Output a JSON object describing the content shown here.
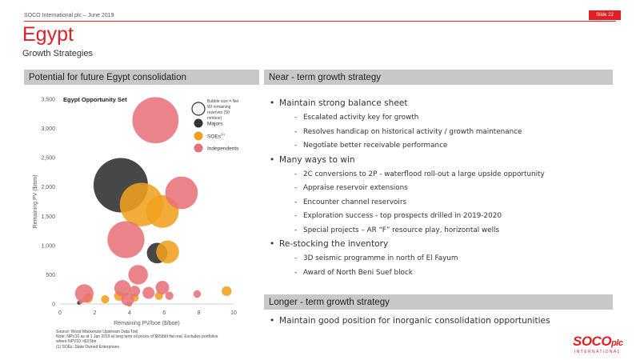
{
  "header": {
    "company": "SOCO International plc – June 2019",
    "slide": "Slide 22"
  },
  "title": "Egypt",
  "subtitle": "Growth Strategies",
  "left_panel": {
    "heading": "Potential for future Egypt consolidation",
    "footnotes": [
      "Source: Wood Mackenzie Upstream Data Tool",
      "Note: NPV10 as at 1 Jan 2019 at long term oil prices of $65/bbl flat real. Excludes portfolios",
      "where NPV10 >$3.5bn",
      "(1) SOEs: State Owned Enterprises"
    ]
  },
  "right_panel": {
    "near_heading": "Near - term growth strategy",
    "near_items": [
      {
        "text": "Maintain strong balance sheet",
        "subs": [
          "Escalated activity key for growth",
          "Resolves handicap on historical activity / growth maintenance",
          "Negotiate better receivable performance"
        ]
      },
      {
        "text": "Many ways to win",
        "subs": [
          "2C conversions to 2P - waterflood roll-out a large upside opportunity",
          "Appraise reservoir extensions",
          "Encounter channel reservoirs",
          "Exploration success - top prospects drilled in 2019-2020",
          "Special projects – AR “F” resource play, horizontal wells"
        ]
      },
      {
        "text": "Re-stocking the inventory",
        "subs": [
          "3D seismic programme in north of El Fayum",
          "Award of North Beni Suef block"
        ]
      }
    ],
    "longer_heading": "Longer - term growth strategy",
    "longer_items": [
      "Maintain good position for inorganic consolidation opportunities"
    ]
  },
  "logo": {
    "text": "SOCO",
    "suffix": "plc",
    "sub": "INTERNATIONAL"
  },
  "colors": {
    "accent": "#e31e24",
    "majors": "#333333",
    "soes": "#f0a01e",
    "independents": "#e8727a",
    "bar": "#c8c8c8"
  },
  "chart_data": {
    "type": "scatter",
    "title": "Egypt Opportunity Set",
    "xlabel": "Remaining PV/boe ($/boe)",
    "ylabel": "Remaining PV ($mm)",
    "xlim": [
      0,
      10
    ],
    "ylim": [
      0,
      3500
    ],
    "xticks": [
      "0",
      "2",
      "4",
      "6",
      "8",
      "10"
    ],
    "yticks": [
      "0",
      "500",
      "1,000",
      "1,500",
      "2,000",
      "2,500",
      "3,000",
      "3,500"
    ],
    "grid": false,
    "legend_position": "top-right",
    "legend": {
      "size_note": "Bubble size = Net WI remaining reserves (50 mmboe)",
      "entries": [
        "Majors",
        "SOEs",
        "Independents"
      ],
      "soes_sup": "(1)"
    },
    "series": [
      {
        "name": "Majors",
        "points": [
          [
            3.5,
            2030,
            1.0
          ],
          [
            5.6,
            870,
            0.38
          ],
          [
            1.1,
            20,
            0.06
          ]
        ]
      },
      {
        "name": "SOEs",
        "points": [
          [
            4.7,
            1700,
            0.8
          ],
          [
            5.9,
            1580,
            0.6
          ],
          [
            6.2,
            890,
            0.42
          ],
          [
            3.4,
            140,
            0.18
          ],
          [
            2.6,
            80,
            0.15
          ],
          [
            1.6,
            100,
            0.18
          ],
          [
            4.3,
            110,
            0.15
          ],
          [
            5.7,
            140,
            0.15
          ],
          [
            9.6,
            220,
            0.18
          ]
        ]
      },
      {
        "name": "Independents",
        "points": [
          [
            5.5,
            3140,
            0.85
          ],
          [
            7.0,
            1900,
            0.6
          ],
          [
            3.8,
            1100,
            0.68
          ],
          [
            4.5,
            500,
            0.36
          ],
          [
            1.4,
            180,
            0.34
          ],
          [
            3.6,
            270,
            0.3
          ],
          [
            5.9,
            280,
            0.25
          ],
          [
            3.9,
            80,
            0.24
          ],
          [
            5.1,
            190,
            0.22
          ],
          [
            4.3,
            220,
            0.2
          ],
          [
            7.9,
            170,
            0.14
          ],
          [
            6.3,
            140,
            0.15
          ],
          [
            1.2,
            40,
            0.08
          ],
          [
            4.0,
            0,
            0.1
          ]
        ]
      }
    ]
  }
}
